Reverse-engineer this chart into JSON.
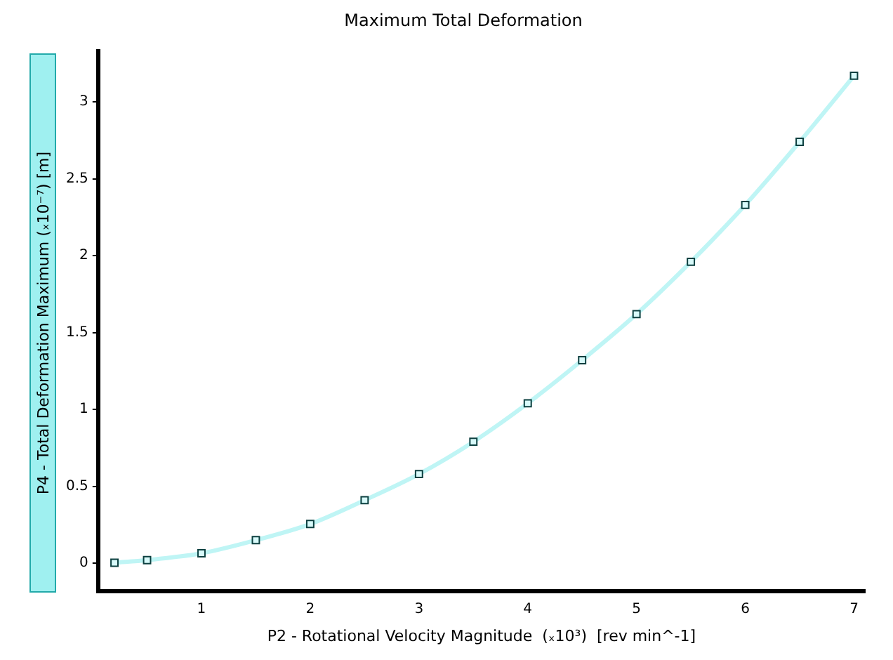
{
  "chart_data": {
    "type": "line",
    "title": "Maximum Total Deformation",
    "xlabel": "P2 - Rotational Velocity Magnitude  (ₓ10³)  [rev min^-1]",
    "ylabel": "P4 - Total Deformation Maximum  (ₓ10⁻⁷)  [m]",
    "x": [
      0.2,
      0.5,
      1,
      1.5,
      2,
      2.5,
      3,
      3.5,
      4,
      4.5,
      5,
      5.5,
      6,
      6.5,
      7
    ],
    "series": [
      {
        "color": "#bff5f5",
        "values": [
          0.003,
          0.02,
          0.065,
          0.15,
          0.255,
          0.41,
          0.58,
          0.79,
          1.04,
          1.32,
          1.62,
          1.96,
          2.33,
          2.74,
          3.17
        ]
      }
    ],
    "xlim": [
      0.05,
      7.1
    ],
    "xticks": [
      1,
      2,
      3,
      4,
      5,
      6,
      7
    ],
    "ylim": [
      -0.18,
      3.33
    ],
    "yticks": [
      0,
      0.5,
      1,
      1.5,
      2,
      2.5,
      3
    ],
    "marker": "square",
    "line_style": "solid",
    "grid": false,
    "legend": false
  }
}
